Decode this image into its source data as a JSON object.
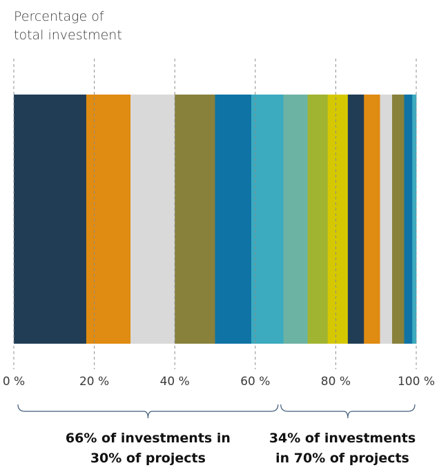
{
  "y_label_lines": [
    "Percentage of",
    "total investment"
  ],
  "chart_data": {
    "type": "bar",
    "orientation": "horizontal",
    "stacked": true,
    "ylabel": "Percentage of total investment",
    "xlim": [
      0,
      100
    ],
    "x_ticks": [
      "0 %",
      "20 %",
      "40 %",
      "60 %",
      "80 %",
      "100 %"
    ],
    "x_tick_values": [
      0,
      20,
      40,
      60,
      80,
      100
    ],
    "grid": true,
    "segments": [
      {
        "value": 18,
        "color": "#213d55"
      },
      {
        "value": 11,
        "color": "#e08b12"
      },
      {
        "value": 11,
        "color": "#d9d9d9"
      },
      {
        "value": 10,
        "color": "#87813c"
      },
      {
        "value": 9,
        "color": "#0f73a5"
      },
      {
        "value": 8,
        "color": "#3caabf"
      },
      {
        "value": 6,
        "color": "#6db3a4"
      },
      {
        "value": 5,
        "color": "#a1b431"
      },
      {
        "value": 5,
        "color": "#d5c800"
      },
      {
        "value": 4,
        "color": "#213d55"
      },
      {
        "value": 4,
        "color": "#e08b12"
      },
      {
        "value": 3,
        "color": "#d9d9d9"
      },
      {
        "value": 3,
        "color": "#87813c"
      },
      {
        "value": 2,
        "color": "#0f73a5"
      },
      {
        "value": 1,
        "color": "#3caabf"
      }
    ],
    "annotations": [
      {
        "text_lines": [
          "66% of investments in",
          "30% of projects"
        ],
        "x_start": 0,
        "x_end": 66
      },
      {
        "text_lines": [
          "34% of investments",
          "in 70% of projects"
        ],
        "x_start": 66,
        "x_end": 100
      }
    ]
  }
}
